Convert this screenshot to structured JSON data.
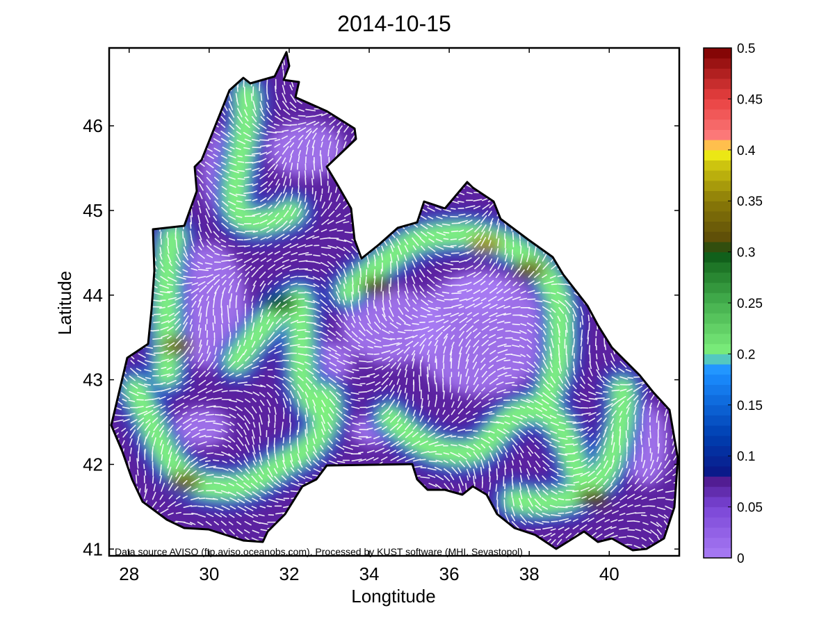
{
  "chart_data": {
    "type": "heatmap",
    "title": "2014-10-15",
    "xlabel": "Longtitude",
    "ylabel": "Latitude",
    "xlim": [
      27.5,
      41.75
    ],
    "ylim": [
      40.92,
      46.92
    ],
    "xticks": [
      "28",
      "30",
      "32",
      "34",
      "36",
      "38",
      "40"
    ],
    "yticks": [
      "41",
      "42",
      "43",
      "44",
      "45",
      "46"
    ],
    "colorbar": {
      "ticks": [
        "0",
        "0.05",
        "0.1",
        "0.15",
        "0.2",
        "0.25",
        "0.3",
        "0.35",
        "0.4",
        "0.45",
        "0.5"
      ],
      "range": [
        0,
        0.5
      ],
      "placement": "right"
    },
    "annotation": "Data source AVISO (ftp.aviso.oceanobs.com). Processed by KUST software (MHI, Sevastopol)",
    "legend": "none",
    "grid": false,
    "overlay": "white current vectors",
    "high_speed_regions": [
      {
        "lon": 29.2,
        "lat": 43.4,
        "value": 0.33
      },
      {
        "lon": 29.4,
        "lat": 41.8,
        "value": 0.33
      },
      {
        "lon": 31.8,
        "lat": 43.9,
        "value": 0.3
      },
      {
        "lon": 34.2,
        "lat": 44.1,
        "value": 0.31
      },
      {
        "lon": 36.9,
        "lat": 44.6,
        "value": 0.36
      },
      {
        "lon": 38.0,
        "lat": 44.3,
        "value": 0.33
      },
      {
        "lon": 39.6,
        "lat": 41.6,
        "value": 0.31
      }
    ]
  },
  "colors": {
    "land_outline": "#000000",
    "vectors": "#ffffff",
    "colorbar_scale": [
      "#a97cf5",
      "#5a1d9a",
      "#0a1a8a",
      "#0055cc",
      "#1f9bff",
      "#7ef07e",
      "#2e9b3e",
      "#084f10",
      "#5d4a0c",
      "#bdb30a",
      "#ffff10",
      "#ff5a5a",
      "#d01818",
      "#820000"
    ]
  }
}
